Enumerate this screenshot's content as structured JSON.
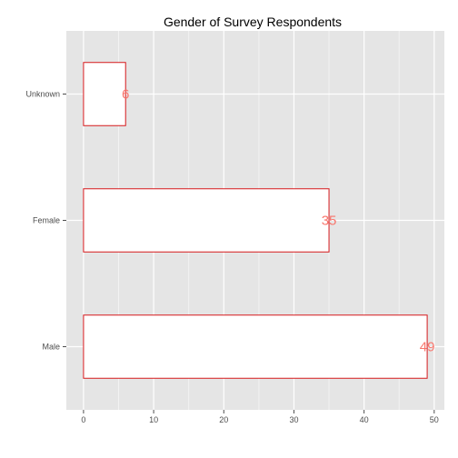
{
  "chart_data": {
    "type": "bar",
    "orientation": "horizontal",
    "title": "Gender of Survey Respondents",
    "xlabel": "",
    "ylabel": "",
    "categories": [
      "Male",
      "Female",
      "Unknown"
    ],
    "values": [
      49,
      35,
      6
    ],
    "xlim": [
      -2.45,
      51.45
    ],
    "xticks": [
      0,
      10,
      20,
      30,
      40,
      50
    ],
    "grid": true,
    "legend": "none",
    "colors": {
      "panel": "#e5e5e5",
      "grid_major": "#ffffff",
      "grid_minor": "#f2f2f2",
      "bar_fill": "#ffffff",
      "bar_stroke": "#d7191c",
      "label": "#f8766d",
      "tick": "#4d4d4d"
    }
  }
}
